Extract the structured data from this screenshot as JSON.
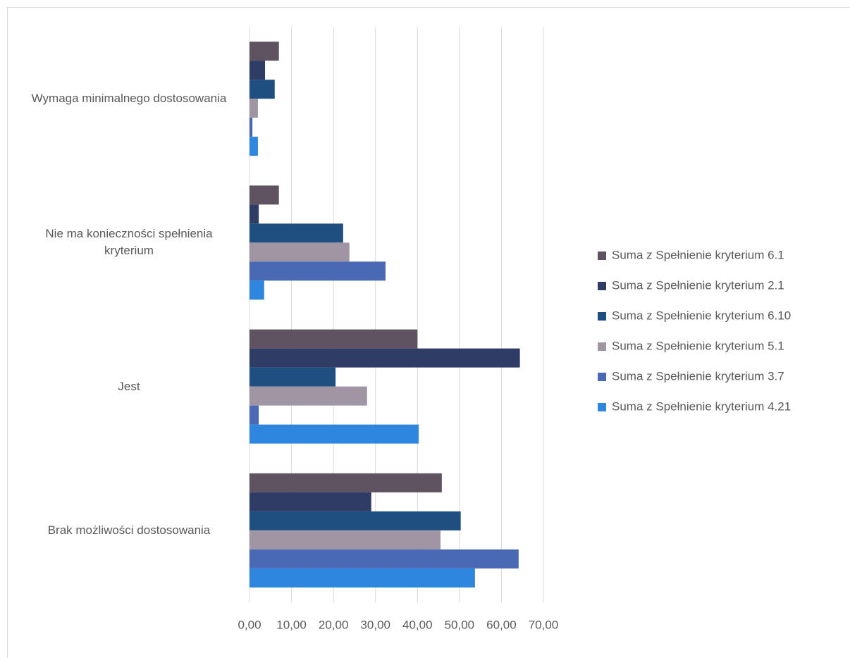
{
  "chart_data": {
    "type": "hbar",
    "categories": [
      "Wymaga minimalnego dostosowania",
      "Nie ma konieczności spełnienia kryterium",
      "Jest",
      "Brak możliwości dostosowania"
    ],
    "series": [
      {
        "name": "Suma z Spełnienie kryterium 6.1",
        "color": "#5f5261",
        "values": [
          7.0,
          7.0,
          40.0,
          45.8
        ]
      },
      {
        "name": "Suma z Spełnienie kryterium 2.1",
        "color": "#2e3c66",
        "values": [
          3.7,
          2.2,
          64.4,
          29.0
        ]
      },
      {
        "name": "Suma z Spełnienie kryterium 6.10",
        "color": "#1f4e80",
        "values": [
          6.0,
          22.3,
          20.5,
          50.3
        ]
      },
      {
        "name": "Suma z Spełnienie kryterium 5.1",
        "color": "#a095a3",
        "values": [
          2.0,
          23.8,
          28.0,
          45.5
        ]
      },
      {
        "name": "Suma z Spełnienie kryterium 3.7",
        "color": "#4a69b4",
        "values": [
          0.7,
          32.4,
          2.2,
          64.1
        ]
      },
      {
        "name": "Suma z Spełnienie kryterium 4.21",
        "color": "#2e86de",
        "values": [
          2.0,
          3.5,
          40.3,
          53.7
        ]
      }
    ],
    "xlim": [
      0,
      70
    ],
    "xticks": [
      {
        "value": 0,
        "label": "0,00"
      },
      {
        "value": 10,
        "label": "10,00"
      },
      {
        "value": 20,
        "label": "20,00"
      },
      {
        "value": 30,
        "label": "30,00"
      },
      {
        "value": 40,
        "label": "40,00"
      },
      {
        "value": 50,
        "label": "50,00"
      },
      {
        "value": 60,
        "label": "60,00"
      },
      {
        "value": 70,
        "label": "70,00"
      }
    ],
    "grid": true,
    "legend": "right"
  }
}
